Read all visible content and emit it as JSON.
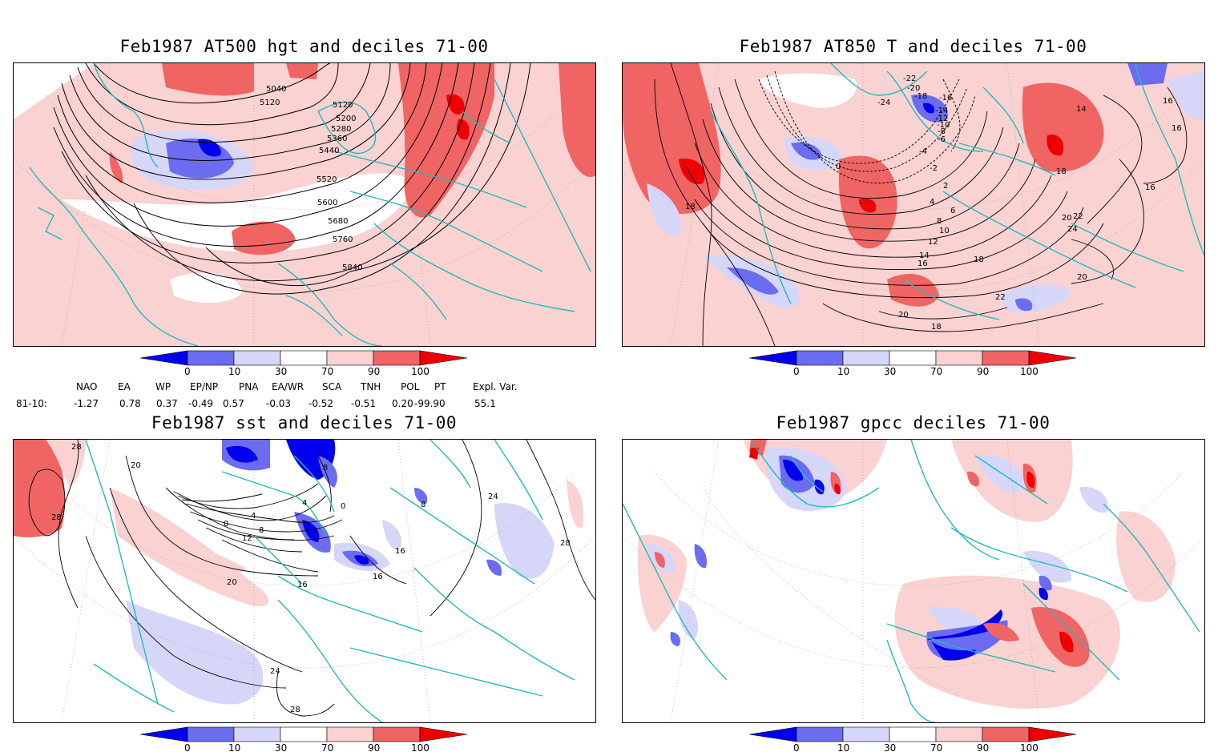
{
  "panels": [
    {
      "id": "p1",
      "title": "Feb1987 AT500 hgt and deciles 71-00",
      "contour_labels": [
        "5040",
        "5120",
        "5120",
        "5200",
        "5280",
        "5360",
        "5440",
        "5520",
        "5600",
        "5680",
        "5760",
        "5840"
      ]
    },
    {
      "id": "p2",
      "title": "Feb1987 AT850 T and deciles 71-00",
      "contour_labels": [
        "-22",
        "-20",
        "-18",
        "-16",
        "-24",
        "-14",
        "-12",
        "-10",
        "-8",
        "-6",
        "-4",
        "-2",
        "0",
        "2",
        "4",
        "6",
        "8",
        "10",
        "12",
        "14",
        "16",
        "18",
        "20",
        "22",
        "24",
        "14",
        "16",
        "16",
        "16",
        "18",
        "18",
        "20",
        "22",
        "20",
        "18"
      ]
    },
    {
      "id": "p3",
      "title": "Feb1987 sst and deciles 71-00",
      "contour_labels": [
        "28",
        "20",
        "28",
        "0",
        "4",
        "8",
        "12",
        "16",
        "20",
        "24",
        "28",
        "16",
        "16",
        "8",
        "4",
        "0",
        "24",
        "28",
        "8"
      ]
    },
    {
      "id": "p4",
      "title": "Feb1987 gpcc deciles 71-00",
      "contour_labels": []
    }
  ],
  "colorbar": {
    "ticks": [
      "0",
      "10",
      "30",
      "70",
      "90",
      "100"
    ],
    "colors": {
      "deep_blue": "#0000ee",
      "mid_blue": "#6c6cf0",
      "light_blue": "#d6d6f8",
      "white": "#ffffff",
      "light_red": "#fad2d2",
      "mid_red": "#f06464",
      "deep_red": "#ee0000"
    }
  },
  "teleconnection": {
    "row_label": "81-10:",
    "headers": [
      "NAO",
      "EA",
      "WP",
      "EP/NP",
      "PNA",
      "EA/WR",
      "SCA",
      "TNH",
      "POL",
      "PT",
      "Expl. Var."
    ],
    "values": [
      "-1.27",
      "0.78",
      "0.37",
      "-0.49",
      "0.57",
      "-0.03",
      "-0.52",
      "-0.51",
      "0.20",
      "-99.90",
      "55.1"
    ]
  },
  "style": {
    "coast_color": "#1fbcbc",
    "contour_color": "#000000"
  }
}
